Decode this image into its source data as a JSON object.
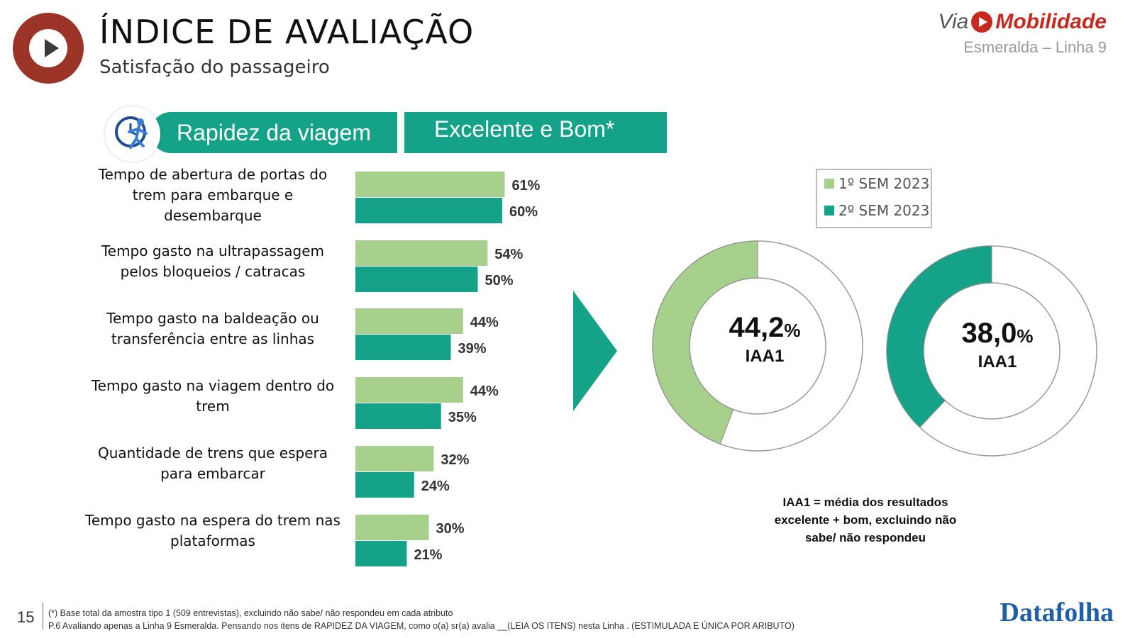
{
  "header": {
    "title": "ÍNDICE DE AVALIAÇÃO",
    "subtitle": "Satisfação do passageiro"
  },
  "brand": {
    "via": "Via",
    "mobilidade": "Mobilidade",
    "line": "Esmeralda – Linha 9"
  },
  "banners": {
    "topic": "Rapidez da viagem",
    "metric": "Excelente e Bom*"
  },
  "legend": {
    "s1": "1º SEM 2023",
    "s2": "2º SEM 2023"
  },
  "colors": {
    "s1": "#a8d08d",
    "s2": "#14a389",
    "brand_red": "#c8281e"
  },
  "chart_data": [
    {
      "type": "bar",
      "orientation": "horizontal",
      "categories": [
        "Tempo de abertura de portas do trem para embarque e desembarque",
        "Tempo gasto na ultrapassagem pelos bloqueios / catracas",
        "Tempo gasto na baldeação ou transferência entre as linhas",
        "Tempo gasto na viagem dentro do trem",
        "Quantidade de trens que espera para embarcar",
        "Tempo gasto na espera do trem nas plataformas"
      ],
      "series": [
        {
          "name": "1º SEM 2023",
          "values": [
            61,
            54,
            44,
            44,
            32,
            30
          ],
          "labels": [
            "61%",
            "54%",
            "44%",
            "44%",
            "32%",
            "30%"
          ]
        },
        {
          "name": "2º SEM 2023",
          "values": [
            60,
            50,
            39,
            35,
            24,
            21
          ],
          "labels": [
            "60%",
            "50%",
            "39%",
            "35%",
            "24%",
            "21%"
          ]
        }
      ],
      "xlim": [
        0,
        100
      ],
      "legend": "top-right"
    },
    {
      "type": "pie",
      "variant": "donut",
      "series": [
        {
          "name": "1º SEM 2023",
          "value": 44.2,
          "value_label": "44,2",
          "unit": "%",
          "label": "IAA1"
        },
        {
          "name": "2º SEM 2023",
          "value": 38.0,
          "value_label": "38,0",
          "unit": "%",
          "label": "IAA1"
        }
      ]
    }
  ],
  "note": "IAA1 = média dos resultados excelente + bom, excluindo não sabe/ não respondeu",
  "footer": {
    "page": "15",
    "line1": "(*) Base total da amostra tipo 1 (509 entrevistas), excluindo não sabe/ não respondeu em cada atributo",
    "line2": "P.6 Avaliando apenas a Linha 9 Esmeralda. Pensando nos itens de RAPIDEZ DA VIAGEM, como o(a) sr(a) avalia __(LEIA OS ITENS) nesta Linha . (ESTIMULADA E ÚNICA POR ARIBUTO)",
    "logo": "Datafolha"
  }
}
